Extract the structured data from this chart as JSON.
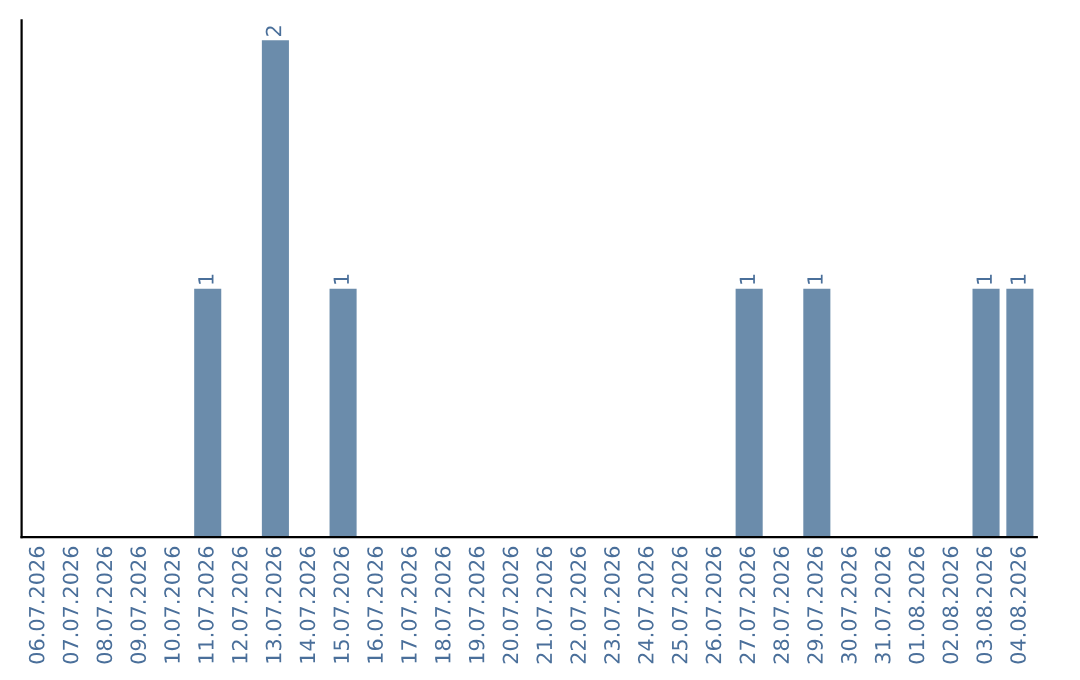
{
  "chart_data": {
    "type": "bar",
    "categories": [
      "06.07.2026",
      "07.07.2026",
      "08.07.2026",
      "09.07.2026",
      "10.07.2026",
      "11.07.2026",
      "12.07.2026",
      "13.07.2026",
      "14.07.2026",
      "15.07.2026",
      "16.07.2026",
      "17.07.2026",
      "18.07.2026",
      "19.07.2026",
      "20.07.2026",
      "21.07.2026",
      "22.07.2026",
      "23.07.2026",
      "24.07.2026",
      "25.07.2026",
      "26.07.2026",
      "27.07.2026",
      "28.07.2026",
      "29.07.2026",
      "30.07.2026",
      "31.07.2026",
      "01.08.2026",
      "02.08.2026",
      "03.08.2026",
      "04.08.2026"
    ],
    "values": [
      0,
      0,
      0,
      0,
      0,
      1,
      0,
      2,
      0,
      1,
      0,
      0,
      0,
      0,
      0,
      0,
      0,
      0,
      0,
      0,
      0,
      1,
      0,
      1,
      0,
      0,
      0,
      0,
      1,
      1
    ],
    "value_labels": [
      null,
      null,
      null,
      null,
      null,
      "1",
      null,
      "2",
      null,
      "1",
      null,
      null,
      null,
      null,
      null,
      null,
      null,
      null,
      null,
      null,
      null,
      "1",
      null,
      "1",
      null,
      null,
      null,
      null,
      "1",
      "1"
    ],
    "color": "#6b8cab",
    "tick_labels": "x",
    "grid": false
  }
}
